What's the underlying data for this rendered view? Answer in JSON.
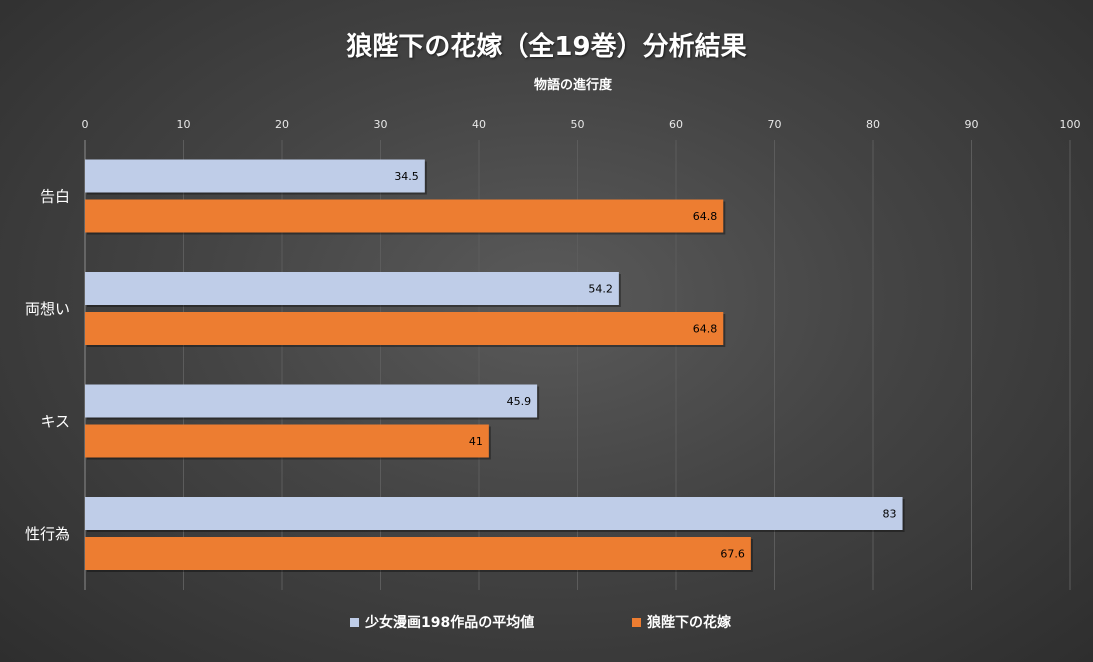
{
  "chart_data": {
    "type": "bar",
    "orientation": "horizontal",
    "title": "狼陛下の花嫁（全19巻）分析結果",
    "xlabel": "物語の進行度",
    "ylabel": "",
    "categories": [
      "告白",
      "両想い",
      "キス",
      "性行為"
    ],
    "xlim": [
      0,
      100
    ],
    "ticks": [
      "0",
      "10",
      "20",
      "30",
      "40",
      "50",
      "60",
      "70",
      "80",
      "90",
      "100"
    ],
    "grid": true,
    "legend_position": "bottom",
    "series": [
      {
        "name": "少女漫画198作品の平均値",
        "color": "#bfcde8",
        "values": [
          34.5,
          54.2,
          45.9,
          83
        ],
        "labels": [
          "34.5",
          "54.2",
          "45.9",
          "83"
        ]
      },
      {
        "name": "狼陛下の花嫁",
        "color": "#ed7d31",
        "values": [
          64.8,
          64.8,
          41,
          67.6
        ],
        "labels": [
          "64.8",
          "64.8",
          "41",
          "67.6"
        ]
      }
    ]
  }
}
